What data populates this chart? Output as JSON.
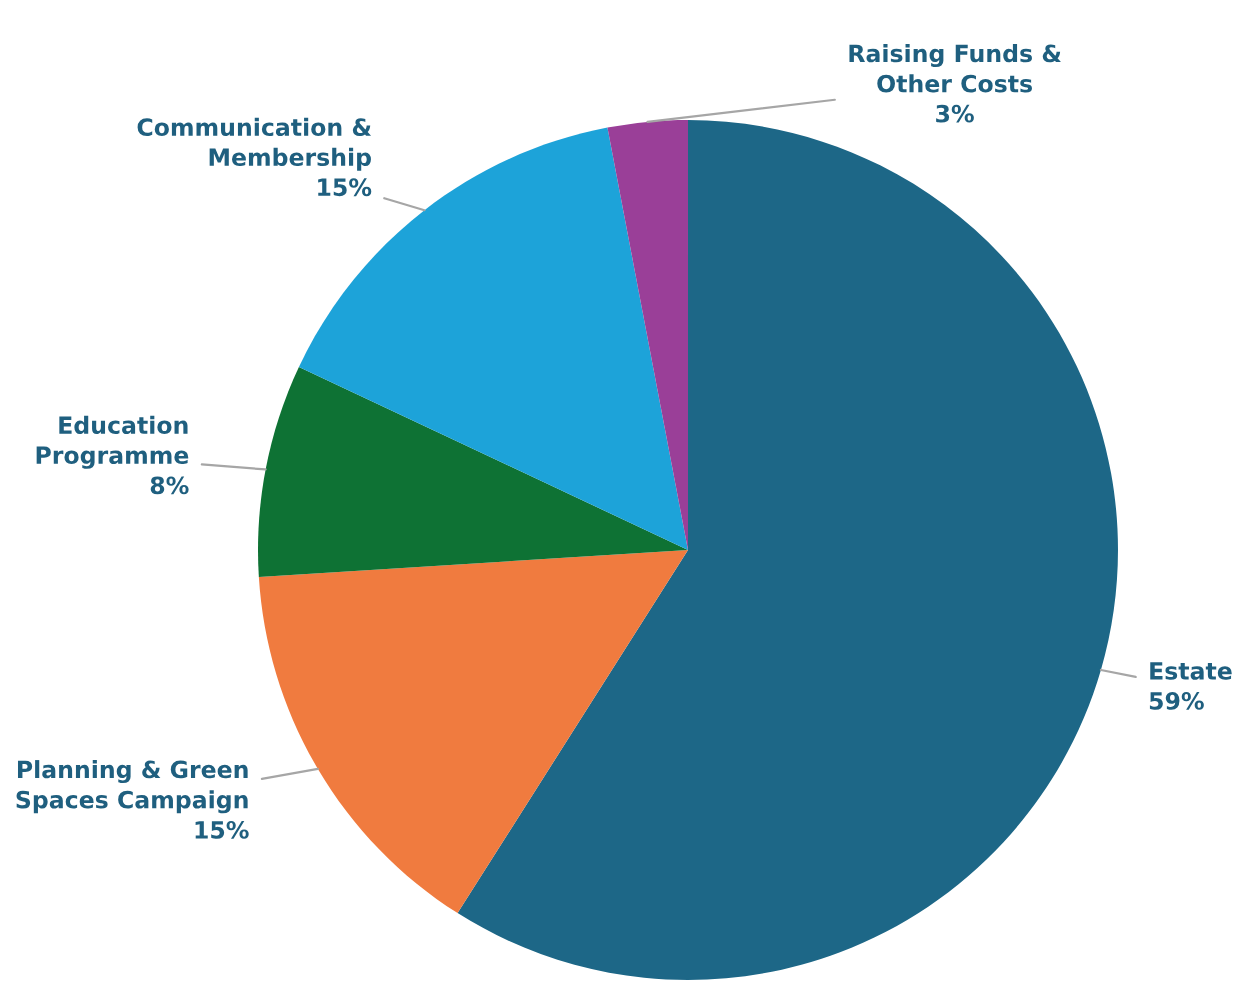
{
  "chart_data": {
    "type": "pie",
    "categories": [
      "Estate",
      "Planning & Green\nSpaces Campaign",
      "Education\nProgramme",
      "Communication &\nMembership",
      "Raising Funds &\nOther Costs"
    ],
    "values": [
      59,
      15,
      8,
      15,
      3
    ],
    "colors": [
      "#1d6787",
      "#f07b3f",
      "#0e7234",
      "#1da3d9",
      "#9a3f98"
    ],
    "value_labels": [
      "59%",
      "15%",
      "8%",
      "15%",
      "3%"
    ]
  }
}
